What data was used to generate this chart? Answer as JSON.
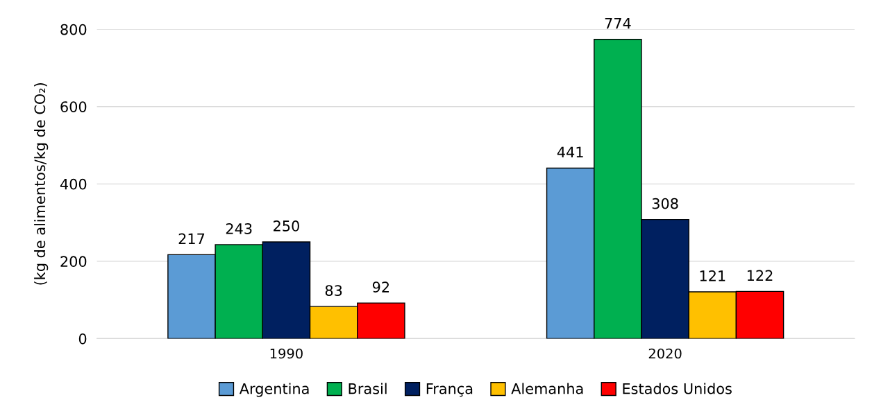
{
  "chart_data": {
    "type": "bar",
    "ylabel": "(kg de alimentos/kg de CO₂)",
    "categories": [
      "1990",
      "2020"
    ],
    "series": [
      {
        "name": "Argentina",
        "color": "#5b9bd5",
        "values": [
          217,
          441
        ]
      },
      {
        "name": "Brasil",
        "color": "#00b050",
        "values": [
          243,
          774
        ]
      },
      {
        "name": "França",
        "color": "#002060",
        "values": [
          250,
          308
        ]
      },
      {
        "name": "Alemanha",
        "color": "#ffc000",
        "values": [
          83,
          121
        ]
      },
      {
        "name": "Estados Unidos",
        "color": "#ff0000",
        "values": [
          92,
          122
        ]
      }
    ],
    "ylim": [
      0,
      800
    ],
    "yticks": [
      0,
      200,
      400,
      600,
      800
    ],
    "grid": "y",
    "data_labels": true,
    "legend": "bottom"
  }
}
